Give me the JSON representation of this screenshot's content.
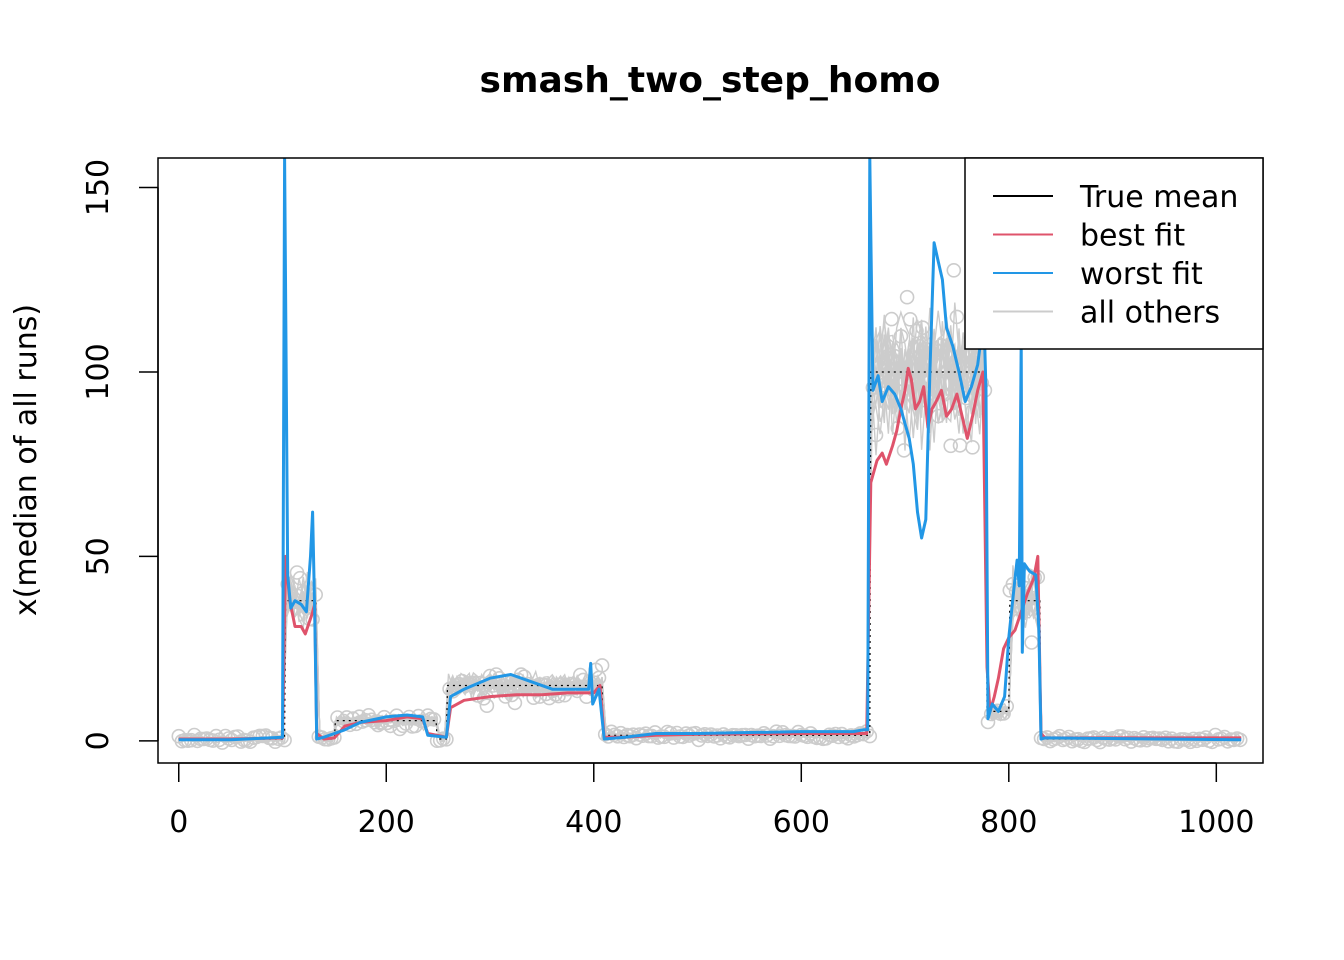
{
  "chart_data": {
    "type": "line",
    "title": "smash_two_step_homo",
    "xlabel": "",
    "ylabel": "x(median of all runs)",
    "xlim": [
      -20,
      1045
    ],
    "ylim": [
      -6,
      158
    ],
    "xticks": [
      0,
      200,
      400,
      600,
      800,
      1000
    ],
    "yticks": [
      0,
      50,
      100,
      150
    ],
    "grid": false,
    "legend_position": "top-right",
    "legend": [
      {
        "label": "True mean",
        "color": "#000000"
      },
      {
        "label": "best fit",
        "color": "#DF536B"
      },
      {
        "label": "worst fit",
        "color": "#2297E6"
      },
      {
        "label": "all others",
        "color": "#CCCCCC"
      }
    ],
    "series": [
      {
        "name": "True mean",
        "color": "#000000",
        "dashed": true,
        "points": [
          [
            0,
            0.5
          ],
          [
            102,
            0.5
          ],
          [
            103,
            38
          ],
          [
            132,
            38
          ],
          [
            133,
            0.5
          ],
          [
            150,
            0.5
          ],
          [
            151,
            5.5
          ],
          [
            248,
            5.5
          ],
          [
            249,
            0.5
          ],
          [
            258,
            0.5
          ],
          [
            259,
            15
          ],
          [
            408,
            15
          ],
          [
            409,
            1.5
          ],
          [
            666,
            1.5
          ],
          [
            667,
            100
          ],
          [
            778,
            100
          ],
          [
            779,
            8
          ],
          [
            800,
            8
          ],
          [
            801,
            38
          ],
          [
            830,
            38
          ],
          [
            831,
            0.5
          ],
          [
            1024,
            0.5
          ]
        ]
      },
      {
        "name": "best fit",
        "color": "#DF536B",
        "points": [
          [
            0,
            0.5
          ],
          [
            50,
            0.5
          ],
          [
            100,
            0.8
          ],
          [
            103,
            50
          ],
          [
            107,
            38
          ],
          [
            112,
            31
          ],
          [
            118,
            31
          ],
          [
            122,
            29
          ],
          [
            128,
            34
          ],
          [
            131,
            37
          ],
          [
            133,
            2
          ],
          [
            140,
            0.5
          ],
          [
            150,
            0.8
          ],
          [
            160,
            4
          ],
          [
            175,
            5
          ],
          [
            200,
            5.5
          ],
          [
            220,
            6.5
          ],
          [
            235,
            6
          ],
          [
            240,
            2
          ],
          [
            258,
            1
          ],
          [
            262,
            9
          ],
          [
            275,
            11
          ],
          [
            300,
            12
          ],
          [
            325,
            12.5
          ],
          [
            350,
            12.5
          ],
          [
            375,
            13
          ],
          [
            400,
            13
          ],
          [
            406,
            15
          ],
          [
            410,
            1
          ],
          [
            430,
            1
          ],
          [
            460,
            1.5
          ],
          [
            500,
            1.8
          ],
          [
            600,
            2
          ],
          [
            650,
            2
          ],
          [
            663,
            2
          ],
          [
            667,
            70
          ],
          [
            673,
            76
          ],
          [
            678,
            78
          ],
          [
            682,
            75
          ],
          [
            688,
            80
          ],
          [
            692,
            84
          ],
          [
            696,
            90
          ],
          [
            700,
            95
          ],
          [
            703,
            101
          ],
          [
            706,
            98
          ],
          [
            710,
            90
          ],
          [
            714,
            92
          ],
          [
            718,
            96
          ],
          [
            722,
            85
          ],
          [
            726,
            90
          ],
          [
            730,
            92
          ],
          [
            735,
            95
          ],
          [
            740,
            88
          ],
          [
            745,
            90
          ],
          [
            750,
            94
          ],
          [
            755,
            88
          ],
          [
            760,
            82
          ],
          [
            765,
            88
          ],
          [
            770,
            95
          ],
          [
            775,
            100
          ],
          [
            779,
            20
          ],
          [
            782,
            8
          ],
          [
            786,
            12
          ],
          [
            790,
            17
          ],
          [
            795,
            25
          ],
          [
            800,
            28
          ],
          [
            806,
            30
          ],
          [
            812,
            35
          ],
          [
            818,
            40
          ],
          [
            824,
            44
          ],
          [
            828,
            50
          ],
          [
            831,
            2
          ],
          [
            835,
            0.8
          ],
          [
            1024,
            0.8
          ]
        ]
      },
      {
        "name": "worst fit",
        "color": "#2297E6",
        "points": [
          [
            0,
            0.3
          ],
          [
            50,
            0.3
          ],
          [
            100,
            1
          ],
          [
            102,
            158
          ],
          [
            105,
            45
          ],
          [
            108,
            36
          ],
          [
            112,
            38
          ],
          [
            118,
            37
          ],
          [
            123,
            35
          ],
          [
            127,
            50
          ],
          [
            129,
            62
          ],
          [
            131,
            35
          ],
          [
            133,
            0.5
          ],
          [
            140,
            1
          ],
          [
            150,
            2
          ],
          [
            160,
            3
          ],
          [
            175,
            5
          ],
          [
            200,
            6.5
          ],
          [
            220,
            7
          ],
          [
            235,
            6.5
          ],
          [
            240,
            1.5
          ],
          [
            258,
            1
          ],
          [
            262,
            12
          ],
          [
            275,
            14
          ],
          [
            300,
            17
          ],
          [
            320,
            18
          ],
          [
            340,
            16
          ],
          [
            360,
            14
          ],
          [
            380,
            14
          ],
          [
            395,
            14
          ],
          [
            397,
            21
          ],
          [
            399,
            10
          ],
          [
            405,
            14
          ],
          [
            410,
            0.5
          ],
          [
            430,
            1
          ],
          [
            460,
            2
          ],
          [
            500,
            2
          ],
          [
            600,
            2.5
          ],
          [
            650,
            2.5
          ],
          [
            660,
            3
          ],
          [
            664,
            3
          ],
          [
            666,
            158
          ],
          [
            669,
            95
          ],
          [
            674,
            99
          ],
          [
            678,
            92
          ],
          [
            684,
            96
          ],
          [
            690,
            94
          ],
          [
            696,
            90
          ],
          [
            700,
            86
          ],
          [
            704,
            82
          ],
          [
            708,
            75
          ],
          [
            712,
            62
          ],
          [
            716,
            55
          ],
          [
            720,
            60
          ],
          [
            724,
            100
          ],
          [
            728,
            135
          ],
          [
            732,
            130
          ],
          [
            736,
            125
          ],
          [
            740,
            112
          ],
          [
            746,
            107
          ],
          [
            752,
            100
          ],
          [
            758,
            92
          ],
          [
            764,
            96
          ],
          [
            770,
            102
          ],
          [
            776,
            115
          ],
          [
            778,
            95
          ],
          [
            780,
            6
          ],
          [
            784,
            10
          ],
          [
            790,
            8
          ],
          [
            796,
            12
          ],
          [
            800,
            28
          ],
          [
            806,
            44
          ],
          [
            808,
            49
          ],
          [
            810,
            42
          ],
          [
            812,
            108
          ],
          [
            813,
            24
          ],
          [
            815,
            48
          ],
          [
            820,
            46
          ],
          [
            826,
            45
          ],
          [
            829,
            30
          ],
          [
            831,
            0.5
          ],
          [
            835,
            0.8
          ],
          [
            1024,
            0.3
          ]
        ]
      }
    ]
  }
}
